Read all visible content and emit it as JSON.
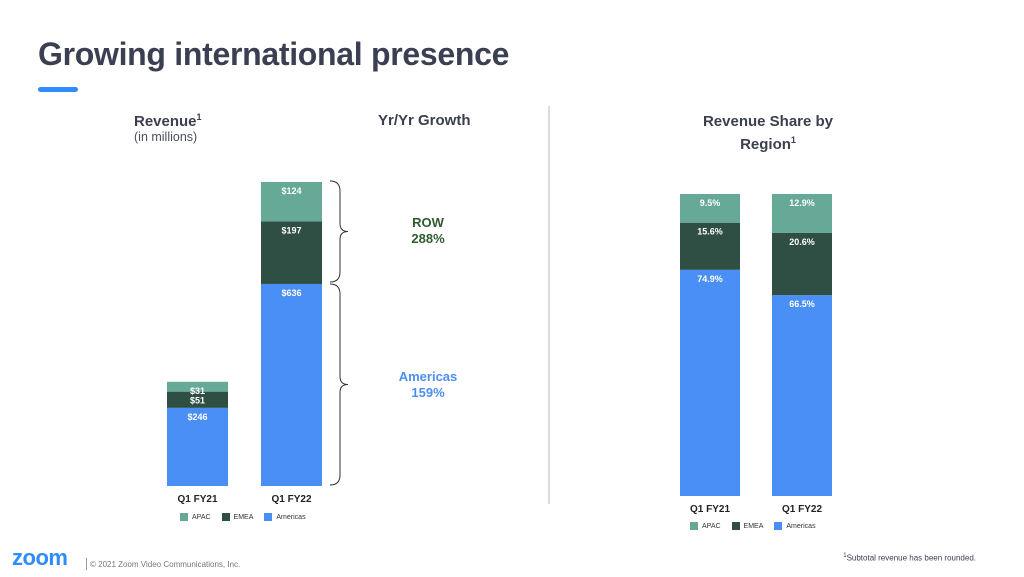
{
  "title": "Growing international presence",
  "colors": {
    "apac": "#66a997",
    "emea": "#2f4f45",
    "americas": "#4a8ff5",
    "row_growth": "#2f5b2f",
    "americas_growth": "#4a8ff5",
    "accent": "#2d8cff"
  },
  "left_panel": {
    "revenue_label": "Revenue",
    "revenue_sup": "1",
    "revenue_sub": "(in millions)",
    "growth_header": "Yr/Yr Growth",
    "growth": [
      {
        "name": "ROW",
        "value": "288%"
      },
      {
        "name": "Americas",
        "value": "159%"
      }
    ]
  },
  "right_panel": {
    "header_line1": "Revenue Share by",
    "header_line2": "Region",
    "header_sup": "1"
  },
  "legend": [
    "APAC",
    "EMEA",
    "Americas"
  ],
  "footnote": {
    "sup": "1",
    "text": "Subtotal revenue has been rounded."
  },
  "footer": {
    "logo": "zoom",
    "copyright": "© 2021 Zoom Video Communications, Inc."
  },
  "chart_data": [
    {
      "type": "bar",
      "stacked": true,
      "title": "Revenue (in millions)",
      "categories": [
        "Q1 FY21",
        "Q1 FY22"
      ],
      "series": [
        {
          "name": "Americas",
          "values": [
            246,
            636
          ],
          "labels": [
            "$246",
            "$636"
          ]
        },
        {
          "name": "EMEA",
          "values": [
            51,
            197
          ],
          "labels": [
            "$51",
            "$197"
          ]
        },
        {
          "name": "APAC",
          "values": [
            31,
            124
          ],
          "labels": [
            "$31",
            "$124"
          ]
        }
      ]
    },
    {
      "type": "bar",
      "stacked": true,
      "title": "Revenue Share by Region",
      "categories": [
        "Q1 FY21",
        "Q1 FY22"
      ],
      "series": [
        {
          "name": "Americas",
          "values": [
            74.9,
            66.5
          ],
          "labels": [
            "74.9%",
            "66.5%"
          ]
        },
        {
          "name": "EMEA",
          "values": [
            15.6,
            20.6
          ],
          "labels": [
            "15.6%",
            "20.6%"
          ]
        },
        {
          "name": "APAC",
          "values": [
            9.5,
            12.9
          ],
          "labels": [
            "9.5%",
            "12.9%"
          ]
        }
      ]
    }
  ]
}
